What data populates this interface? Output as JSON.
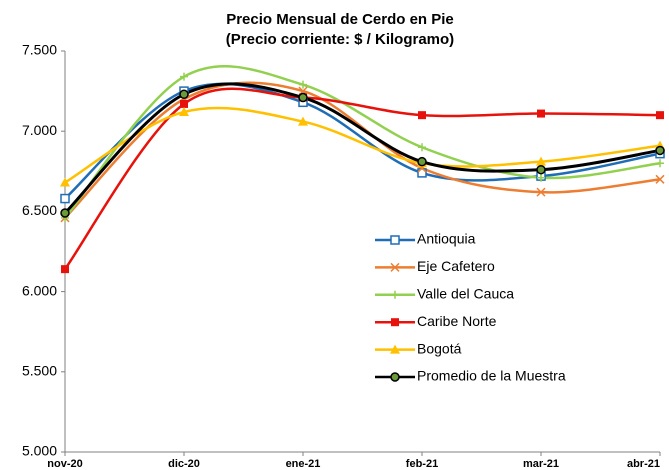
{
  "chart_data": {
    "type": "line",
    "title": "Precio Mensual de Cerdo en Pie",
    "subtitle": "(Precio corriente: $ / Kilogramo)",
    "categories": [
      "nov-20",
      "dic-20",
      "ene-21",
      "feb-21",
      "mar-21",
      "abr-21"
    ],
    "series": [
      {
        "name": "Antioquia",
        "color": "#1f6db5",
        "marker": "open-square",
        "values": [
          6580,
          7250,
          7180,
          6740,
          6720,
          6860
        ]
      },
      {
        "name": "Eje Cafetero",
        "color": "#ed7d31",
        "marker": "x",
        "values": [
          6460,
          7200,
          7250,
          6770,
          6620,
          6700
        ]
      },
      {
        "name": "Valle del Cauca",
        "color": "#92d050",
        "marker": "plus",
        "values": [
          6460,
          7340,
          7290,
          6900,
          6710,
          6800
        ]
      },
      {
        "name": "Caribe Norte",
        "color": "#e8120c",
        "marker": "square",
        "values": [
          6140,
          7170,
          7210,
          7100,
          7110,
          7100
        ]
      },
      {
        "name": "Bogotá",
        "color": "#ffc000",
        "marker": "triangle",
        "values": [
          6680,
          7120,
          7060,
          6800,
          6810,
          6910
        ]
      },
      {
        "name": "Promedio de la Muestra",
        "color": "#000000",
        "marker": "circle",
        "values": [
          6490,
          7230,
          7210,
          6810,
          6760,
          6880
        ]
      }
    ],
    "ylim": [
      5000,
      7500
    ],
    "yticks": [
      {
        "value": 5000,
        "label": "5.000"
      },
      {
        "value": 5500,
        "label": "5.500"
      },
      {
        "value": 6000,
        "label": "6.000"
      },
      {
        "value": 6500,
        "label": "6.500"
      },
      {
        "value": 7000,
        "label": "7.000"
      },
      {
        "value": 7500,
        "label": "7.500"
      }
    ],
    "smooth": true,
    "grid": false,
    "legend": "right"
  }
}
